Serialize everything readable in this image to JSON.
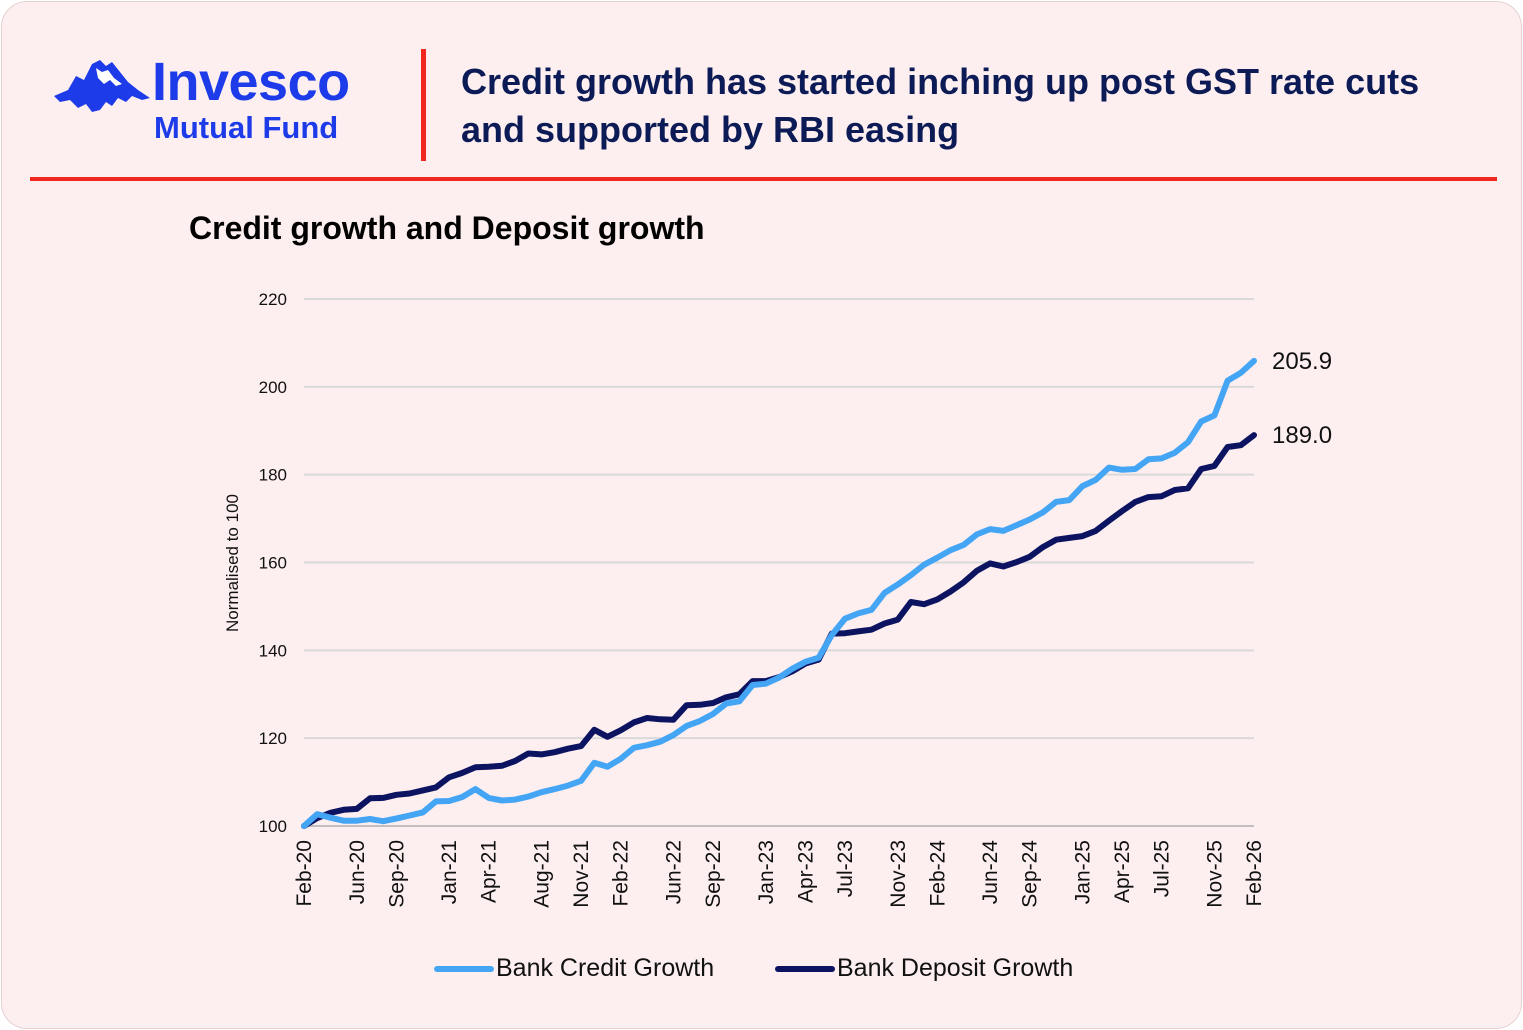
{
  "brand": {
    "name": "Invesco",
    "sub": "Mutual Fund",
    "color": "#1d3be8"
  },
  "headline": "Credit growth has started inching up post GST rate cuts and supported by RBI easing",
  "accent_color": "#f0281e",
  "chart_data": {
    "type": "line",
    "title": "Credit growth and Deposit growth",
    "ylabel": "Normalised to 100",
    "xlabel": "",
    "ylim": [
      100,
      220
    ],
    "yticks": [
      100,
      120,
      140,
      160,
      180,
      200,
      220
    ],
    "grid": "horizontal",
    "legend_position": "bottom",
    "x_start": "Feb-20",
    "x_end": "Feb-26",
    "xticks": [
      "Feb-20",
      "Jun-20",
      "Sep-20",
      "Jan-21",
      "Apr-21",
      "Aug-21",
      "Nov-21",
      "Feb-22",
      "Jun-22",
      "Sep-22",
      "Jan-23",
      "Apr-23",
      "Jul-23",
      "Nov-23",
      "Feb-24",
      "Jun-24",
      "Sep-24",
      "Jan-25",
      "Apr-25",
      "Jul-25",
      "Nov-25",
      "Feb-26"
    ],
    "series": [
      {
        "name": "Bank Credit Growth",
        "color": "#45a5f5",
        "end_label": "205.9",
        "points": [
          [
            "Feb-20",
            100
          ],
          [
            "Mar-20",
            102.7
          ],
          [
            "Apr-20",
            101.9
          ],
          [
            "May-20",
            101.2
          ],
          [
            "Jun-20",
            101.2
          ],
          [
            "Jul-20",
            101.6
          ],
          [
            "Aug-20",
            101.1
          ],
          [
            "Sep-20",
            101.7
          ],
          [
            "Oct-20",
            102.4
          ],
          [
            "Nov-20",
            103.1
          ],
          [
            "Dec-20",
            105.6
          ],
          [
            "Jan-21",
            105.7
          ],
          [
            "Feb-21",
            106.6
          ],
          [
            "Mar-21",
            108.4
          ],
          [
            "Apr-21",
            106.4
          ],
          [
            "May-21",
            105.8
          ],
          [
            "Jun-21",
            106.0
          ],
          [
            "Jul-21",
            106.7
          ],
          [
            "Aug-21",
            107.7
          ],
          [
            "Sep-21",
            108.4
          ],
          [
            "Oct-21",
            109.2
          ],
          [
            "Nov-21",
            110.3
          ],
          [
            "Dec-21",
            114.4
          ],
          [
            "Jan-22",
            113.5
          ],
          [
            "Feb-22",
            115.3
          ],
          [
            "Mar-22",
            117.8
          ],
          [
            "Apr-22",
            118.4
          ],
          [
            "May-22",
            119.2
          ],
          [
            "Jun-22",
            120.7
          ],
          [
            "Jul-22",
            122.8
          ],
          [
            "Aug-22",
            123.9
          ],
          [
            "Sep-22",
            125.5
          ],
          [
            "Oct-22",
            127.9
          ],
          [
            "Nov-22",
            128.4
          ],
          [
            "Dec-22",
            132.1
          ],
          [
            "Jan-23",
            132.4
          ],
          [
            "Feb-23",
            133.8
          ],
          [
            "Mar-23",
            135.8
          ],
          [
            "Apr-23",
            137.4
          ],
          [
            "May-23",
            138.3
          ],
          [
            "Jun-23",
            143.5
          ],
          [
            "Jul-23",
            147.2
          ],
          [
            "Aug-23",
            148.4
          ],
          [
            "Sep-23",
            149.2
          ],
          [
            "Oct-23",
            153.1
          ],
          [
            "Nov-23",
            155.0
          ],
          [
            "Dec-23",
            157.1
          ],
          [
            "Jan-24",
            159.5
          ],
          [
            "Feb-24",
            161.1
          ],
          [
            "Mar-24",
            162.8
          ],
          [
            "Apr-24",
            164.0
          ],
          [
            "May-24",
            166.4
          ],
          [
            "Jun-24",
            167.6
          ],
          [
            "Jul-24",
            167.2
          ],
          [
            "Aug-24",
            168.5
          ],
          [
            "Sep-24",
            169.8
          ],
          [
            "Oct-24",
            171.4
          ],
          [
            "Nov-24",
            173.8
          ],
          [
            "Dec-24",
            174.2
          ],
          [
            "Jan-25",
            177.4
          ],
          [
            "Feb-25",
            178.8
          ],
          [
            "Mar-25",
            181.6
          ],
          [
            "Apr-25",
            181.1
          ],
          [
            "May-25",
            181.3
          ],
          [
            "Jun-25",
            183.5
          ],
          [
            "Jul-25",
            183.7
          ],
          [
            "Aug-25",
            185.0
          ],
          [
            "Sep-25",
            187.4
          ],
          [
            "Oct-25",
            192.1
          ],
          [
            "Nov-25",
            193.5
          ],
          [
            "Dec-25",
            201.4
          ],
          [
            "Jan-26",
            203.2
          ],
          [
            "Feb-26",
            205.9
          ]
        ]
      },
      {
        "name": "Bank Deposit Growth",
        "color": "#0c1461",
        "end_label": "189.0",
        "points": [
          [
            "Feb-20",
            100
          ],
          [
            "Mar-20",
            101.8
          ],
          [
            "Apr-20",
            103.0
          ],
          [
            "May-20",
            103.7
          ],
          [
            "Jun-20",
            103.9
          ],
          [
            "Jul-20",
            106.3
          ],
          [
            "Aug-20",
            106.4
          ],
          [
            "Sep-20",
            107.1
          ],
          [
            "Oct-20",
            107.4
          ],
          [
            "Nov-20",
            108.1
          ],
          [
            "Dec-20",
            108.8
          ],
          [
            "Jan-21",
            111.1
          ],
          [
            "Feb-21",
            112.1
          ],
          [
            "Mar-21",
            113.4
          ],
          [
            "Apr-21",
            113.5
          ],
          [
            "May-21",
            113.7
          ],
          [
            "Jun-21",
            114.8
          ],
          [
            "Jul-21",
            116.5
          ],
          [
            "Aug-21",
            116.3
          ],
          [
            "Sep-21",
            116.8
          ],
          [
            "Oct-21",
            117.6
          ],
          [
            "Nov-21",
            118.2
          ],
          [
            "Dec-21",
            121.9
          ],
          [
            "Jan-22",
            120.3
          ],
          [
            "Feb-22",
            121.8
          ],
          [
            "Mar-22",
            123.6
          ],
          [
            "Apr-22",
            124.6
          ],
          [
            "May-22",
            124.3
          ],
          [
            "Jun-22",
            124.2
          ],
          [
            "Jul-22",
            127.5
          ],
          [
            "Aug-22",
            127.6
          ],
          [
            "Sep-22",
            128.0
          ],
          [
            "Oct-22",
            129.3
          ],
          [
            "Nov-22",
            130.0
          ],
          [
            "Dec-22",
            133.0
          ],
          [
            "Jan-23",
            133.0
          ],
          [
            "Feb-23",
            133.9
          ],
          [
            "Mar-23",
            135.2
          ],
          [
            "Apr-23",
            137.0
          ],
          [
            "May-23",
            137.9
          ],
          [
            "Jun-23",
            143.8
          ],
          [
            "Jul-23",
            143.9
          ],
          [
            "Aug-23",
            144.3
          ],
          [
            "Sep-23",
            144.7
          ],
          [
            "Oct-23",
            146.1
          ],
          [
            "Nov-23",
            147.0
          ],
          [
            "Dec-23",
            151.0
          ],
          [
            "Jan-24",
            150.5
          ],
          [
            "Feb-24",
            151.6
          ],
          [
            "Mar-24",
            153.4
          ],
          [
            "Apr-24",
            155.5
          ],
          [
            "May-24",
            158.1
          ],
          [
            "Jun-24",
            159.8
          ],
          [
            "Jul-24",
            159.1
          ],
          [
            "Aug-24",
            160.1
          ],
          [
            "Sep-24",
            161.3
          ],
          [
            "Oct-24",
            163.5
          ],
          [
            "Nov-24",
            165.2
          ],
          [
            "Dec-24",
            165.6
          ],
          [
            "Jan-25",
            166.0
          ],
          [
            "Feb-25",
            167.2
          ],
          [
            "Mar-25",
            169.5
          ],
          [
            "Apr-25",
            171.7
          ],
          [
            "May-25",
            173.8
          ],
          [
            "Jun-25",
            174.9
          ],
          [
            "Jul-25",
            175.1
          ],
          [
            "Aug-25",
            176.5
          ],
          [
            "Sep-25",
            176.9
          ],
          [
            "Oct-25",
            181.3
          ],
          [
            "Nov-25",
            182.0
          ],
          [
            "Dec-25",
            186.3
          ],
          [
            "Jan-26",
            186.7
          ],
          [
            "Feb-26",
            189.0
          ]
        ]
      }
    ]
  }
}
